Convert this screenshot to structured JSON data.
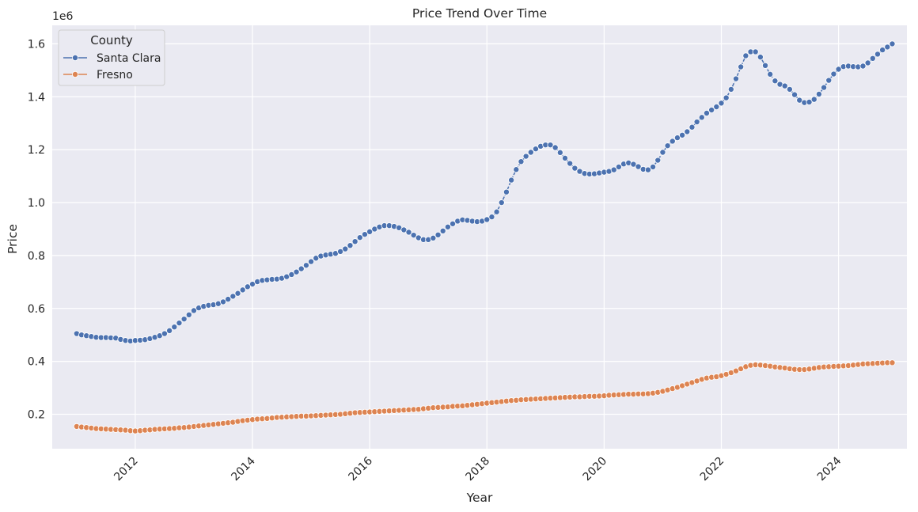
{
  "chart_data": {
    "type": "line",
    "title": "Price Trend Over Time",
    "xlabel": "Year",
    "ylabel": "Price",
    "y_offset_label": "1e6",
    "x_ticks": [
      "2012",
      "2014",
      "2016",
      "2018",
      "2020",
      "2022",
      "2024"
    ],
    "y_ticks": [
      "0.2",
      "0.4",
      "0.6",
      "0.8",
      "1.0",
      "1.2",
      "1.4",
      "1.6"
    ],
    "xlim": [
      "2010-08-01",
      "2025-03-01"
    ],
    "ylim": [
      0.07,
      1.67
    ],
    "grid": true,
    "background": "#eaeaf2",
    "legend": {
      "title": "County",
      "placement": "top-left"
    },
    "start_month": "2011-01",
    "series": [
      {
        "name": "Santa Clara",
        "color": "#4c72b0",
        "values": [
          0.505,
          0.5,
          0.497,
          0.494,
          0.491,
          0.49,
          0.49,
          0.489,
          0.488,
          0.483,
          0.479,
          0.477,
          0.479,
          0.48,
          0.482,
          0.486,
          0.491,
          0.497,
          0.505,
          0.516,
          0.53,
          0.545,
          0.56,
          0.576,
          0.592,
          0.602,
          0.608,
          0.612,
          0.614,
          0.618,
          0.625,
          0.635,
          0.646,
          0.657,
          0.67,
          0.682,
          0.692,
          0.701,
          0.706,
          0.708,
          0.71,
          0.711,
          0.714,
          0.72,
          0.728,
          0.738,
          0.75,
          0.763,
          0.777,
          0.79,
          0.798,
          0.802,
          0.805,
          0.808,
          0.815,
          0.825,
          0.838,
          0.853,
          0.868,
          0.88,
          0.89,
          0.9,
          0.908,
          0.913,
          0.913,
          0.91,
          0.905,
          0.897,
          0.888,
          0.877,
          0.867,
          0.86,
          0.86,
          0.866,
          0.878,
          0.893,
          0.908,
          0.92,
          0.93,
          0.935,
          0.933,
          0.93,
          0.928,
          0.93,
          0.936,
          0.946,
          0.965,
          1.0,
          1.04,
          1.085,
          1.125,
          1.155,
          1.175,
          1.19,
          1.203,
          1.213,
          1.218,
          1.218,
          1.208,
          1.189,
          1.168,
          1.148,
          1.13,
          1.118,
          1.11,
          1.108,
          1.109,
          1.112,
          1.115,
          1.118,
          1.124,
          1.135,
          1.146,
          1.15,
          1.145,
          1.136,
          1.126,
          1.124,
          1.135,
          1.16,
          1.19,
          1.215,
          1.232,
          1.245,
          1.255,
          1.268,
          1.285,
          1.305,
          1.322,
          1.338,
          1.35,
          1.362,
          1.376,
          1.396,
          1.428,
          1.468,
          1.513,
          1.555,
          1.57,
          1.57,
          1.55,
          1.518,
          1.485,
          1.46,
          1.447,
          1.441,
          1.428,
          1.408,
          1.387,
          1.378,
          1.38,
          1.39,
          1.41,
          1.435,
          1.462,
          1.486,
          1.504,
          1.514,
          1.516,
          1.514,
          1.513,
          1.516,
          1.528,
          1.545,
          1.561,
          1.577,
          1.588,
          1.6
        ]
      },
      {
        "name": "Fresno",
        "color": "#dd8452",
        "values": [
          0.154,
          0.152,
          0.15,
          0.148,
          0.146,
          0.145,
          0.144,
          0.143,
          0.142,
          0.141,
          0.14,
          0.138,
          0.137,
          0.138,
          0.14,
          0.141,
          0.143,
          0.144,
          0.145,
          0.146,
          0.147,
          0.149,
          0.15,
          0.152,
          0.154,
          0.156,
          0.158,
          0.16,
          0.162,
          0.164,
          0.166,
          0.168,
          0.17,
          0.173,
          0.176,
          0.178,
          0.18,
          0.182,
          0.183,
          0.184,
          0.186,
          0.188,
          0.189,
          0.19,
          0.191,
          0.192,
          0.193,
          0.193,
          0.194,
          0.195,
          0.196,
          0.197,
          0.198,
          0.199,
          0.2,
          0.202,
          0.204,
          0.206,
          0.207,
          0.208,
          0.209,
          0.21,
          0.211,
          0.212,
          0.213,
          0.214,
          0.215,
          0.216,
          0.217,
          0.218,
          0.219,
          0.221,
          0.223,
          0.225,
          0.226,
          0.227,
          0.228,
          0.23,
          0.231,
          0.232,
          0.234,
          0.236,
          0.238,
          0.24,
          0.242,
          0.244,
          0.246,
          0.248,
          0.25,
          0.252,
          0.253,
          0.255,
          0.256,
          0.257,
          0.258,
          0.259,
          0.26,
          0.261,
          0.262,
          0.263,
          0.264,
          0.265,
          0.266,
          0.266,
          0.267,
          0.268,
          0.268,
          0.269,
          0.27,
          0.272,
          0.273,
          0.274,
          0.275,
          0.276,
          0.276,
          0.277,
          0.277,
          0.278,
          0.28,
          0.283,
          0.287,
          0.292,
          0.297,
          0.302,
          0.308,
          0.314,
          0.32,
          0.326,
          0.332,
          0.337,
          0.34,
          0.342,
          0.346,
          0.351,
          0.357,
          0.364,
          0.372,
          0.38,
          0.385,
          0.387,
          0.386,
          0.384,
          0.382,
          0.379,
          0.377,
          0.375,
          0.372,
          0.37,
          0.369,
          0.369,
          0.371,
          0.374,
          0.377,
          0.379,
          0.38,
          0.381,
          0.382,
          0.383,
          0.384,
          0.386,
          0.388,
          0.39,
          0.391,
          0.392,
          0.393,
          0.394,
          0.395,
          0.395
        ]
      }
    ]
  }
}
